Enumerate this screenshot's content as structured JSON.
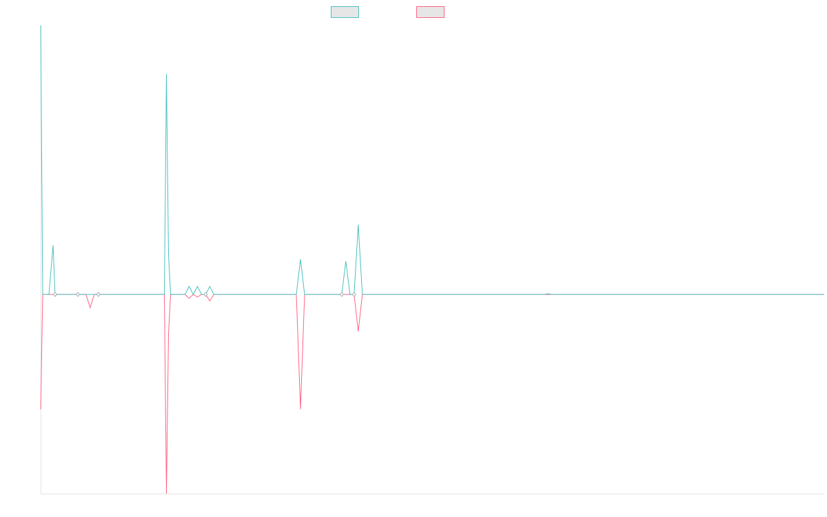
{
  "chart_data": {
    "type": "line",
    "title": "",
    "xlabel": "",
    "ylabel": "",
    "grid": false,
    "legend": "top-center",
    "xlim": [
      0,
      190
    ],
    "ylim": [
      -300,
      405
    ],
    "x": [
      0,
      0.5,
      1,
      2,
      3,
      3.5,
      4,
      5,
      6,
      7,
      8,
      9,
      10,
      11,
      12,
      13,
      14,
      15,
      30,
      30.5,
      31,
      31.5,
      32,
      33,
      34,
      35,
      36,
      37,
      38,
      39,
      40,
      41,
      42,
      62,
      63,
      64,
      65,
      73,
      74,
      75,
      76,
      77,
      78,
      79,
      122,
      123,
      124,
      190
    ],
    "series": [
      {
        "name": "",
        "color": "#4bc0c0",
        "values": [
          405,
          0,
          0,
          0,
          74,
          0,
          0,
          0,
          0,
          0,
          0,
          0,
          0,
          0,
          0,
          0,
          0,
          0,
          0,
          332,
          60,
          0,
          0,
          0,
          0,
          0,
          12,
          0,
          12,
          0,
          0,
          12,
          0,
          0,
          53,
          0,
          0,
          0,
          50,
          0,
          0,
          105,
          0,
          0,
          0,
          1,
          0,
          0
        ]
      },
      {
        "name": "",
        "color": "#ff6384",
        "values": [
          -173,
          0,
          0,
          0,
          0,
          0,
          0,
          0,
          0,
          0,
          0,
          0,
          0,
          0,
          -20,
          0,
          0,
          0,
          0,
          -300,
          -60,
          0,
          0,
          0,
          0,
          0,
          -6,
          0,
          -4,
          0,
          0,
          -10,
          0,
          0,
          -173,
          0,
          0,
          0,
          0,
          0,
          0,
          -56,
          0,
          0,
          0,
          0,
          0,
          0
        ]
      }
    ],
    "markers": {
      "marker_x": [
        3.5,
        9,
        14,
        40,
        73,
        76
      ],
      "color": "#4bc0c0"
    }
  }
}
